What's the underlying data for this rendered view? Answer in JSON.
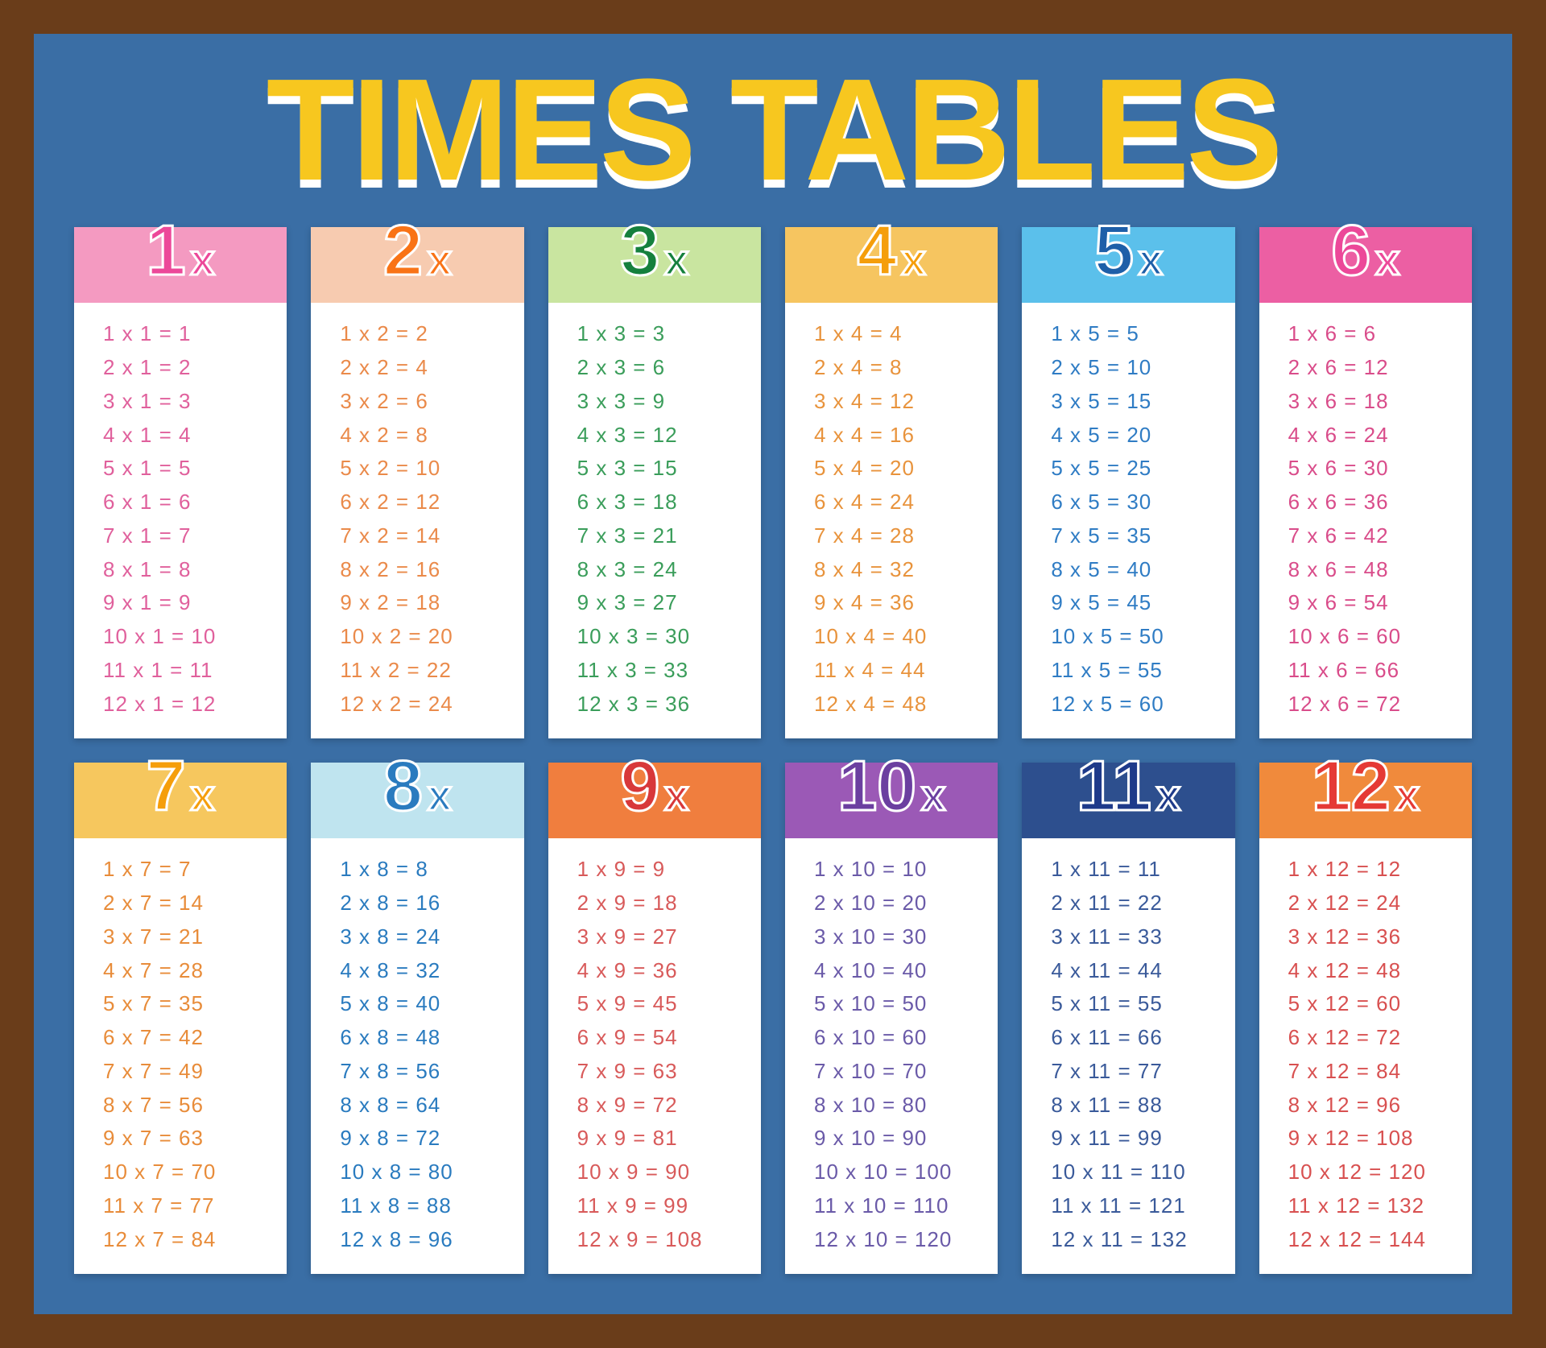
{
  "title": "TIMES TABLES",
  "frame_color": "#6a3d1a",
  "board_color": "#3a6ea5",
  "title_color": "#f7c71f",
  "title_shadow_color": "#ffffff",
  "card_bg": "#ffffff",
  "multipliers": [
    1,
    2,
    3,
    4,
    5,
    6,
    7,
    8,
    9,
    10,
    11,
    12
  ],
  "tables": [
    {
      "n": 1,
      "header_bg": "#f49ac1",
      "num_color": "#ec4899",
      "x_color": "#ec4899",
      "text_color": "#e0609c"
    },
    {
      "n": 2,
      "header_bg": "#f7cbb0",
      "num_color": "#f97316",
      "x_color": "#f97316",
      "text_color": "#ea8a4a"
    },
    {
      "n": 3,
      "header_bg": "#c9e5a0",
      "num_color": "#15803d",
      "x_color": "#15803d",
      "text_color": "#3a9d5a"
    },
    {
      "n": 4,
      "header_bg": "#f6c560",
      "num_color": "#f59e0b",
      "x_color": "#f59e0b",
      "text_color": "#e8933c"
    },
    {
      "n": 5,
      "header_bg": "#5bc0eb",
      "num_color": "#1e5fa8",
      "x_color": "#1e5fa8",
      "text_color": "#2f7cc4"
    },
    {
      "n": 6,
      "header_bg": "#ec5fa3",
      "num_color": "#ec4899",
      "x_color": "#ec4899",
      "text_color": "#d94c8a"
    },
    {
      "n": 7,
      "header_bg": "#f6c75e",
      "num_color": "#f59e0b",
      "x_color": "#f59e0b",
      "text_color": "#e88c3a"
    },
    {
      "n": 8,
      "header_bg": "#bfe4ef",
      "num_color": "#2a7bbf",
      "x_color": "#2a7bbf",
      "text_color": "#2a7bbf"
    },
    {
      "n": 9,
      "header_bg": "#f07e3e",
      "num_color": "#d8383a",
      "x_color": "#d8383a",
      "text_color": "#d85a5a"
    },
    {
      "n": 10,
      "header_bg": "#9b59b6",
      "num_color": "#6b3fa0",
      "x_color": "#6b3fa0",
      "text_color": "#6a5aa8"
    },
    {
      "n": 11,
      "header_bg": "#2d4f8e",
      "num_color": "#1e3a8a",
      "x_color": "#1e3a8a",
      "text_color": "#3a5a9a"
    },
    {
      "n": 12,
      "header_bg": "#f08a3c",
      "num_color": "#e53935",
      "x_color": "#e53935",
      "text_color": "#d85050"
    }
  ]
}
